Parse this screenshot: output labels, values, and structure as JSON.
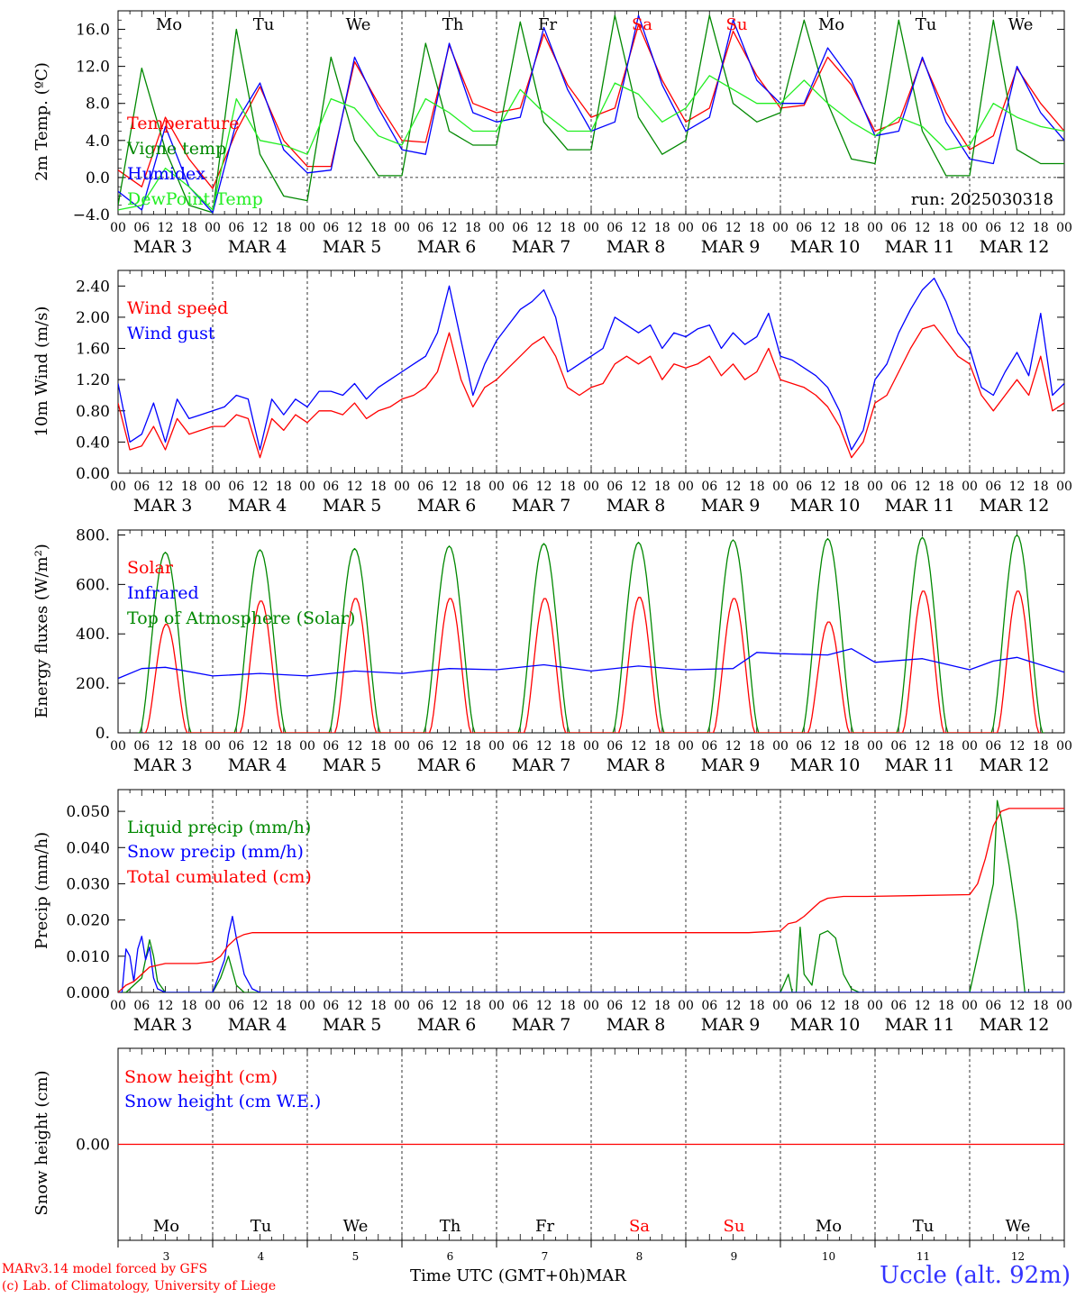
{
  "footer": {
    "credit_line1": "MARv3.14 model forced by GFS",
    "credit_line2": "(c) Lab. of Climatology, University of Liege",
    "x_title": "Time UTC (GMT+0h)",
    "x_month": "MAR",
    "station": "Uccle (alt. 92m)"
  },
  "colors": {
    "red": "#ff0000",
    "blue": "#0000ff",
    "dark_green": "#008800",
    "light_green": "#22ee22",
    "weekend": "#ff0000"
  },
  "chart_data": [
    {
      "type": "line",
      "ylabel": "2m Temp. (ºC)",
      "ylim": [
        -4,
        18
      ],
      "yticks": [
        "16.0",
        "12.0",
        "8.0",
        "4.0",
        "0.0",
        "−4.0"
      ],
      "annotation": "run: 2025030318",
      "days": [
        "Mo",
        "Tu",
        "We",
        "Th",
        "Fr",
        "Sa",
        "Su",
        "Mo",
        "Tu",
        "We"
      ],
      "series": [
        {
          "name": "Temperature",
          "color": "#ff0000",
          "x": [
            0,
            6,
            12,
            18,
            24,
            30,
            36,
            42,
            48,
            54,
            60,
            66,
            72,
            78,
            84,
            90,
            96,
            102,
            108,
            114,
            120,
            126,
            132,
            138,
            144,
            150,
            156,
            162,
            168,
            174,
            180,
            186,
            192,
            198,
            204,
            210,
            216,
            222,
            228,
            234,
            240
          ],
          "values": [
            0.8,
            -1.0,
            6.5,
            2.0,
            -1.2,
            5.0,
            9.8,
            4.0,
            1.2,
            1.2,
            12.5,
            8.0,
            4.0,
            3.8,
            14.3,
            8.0,
            7.0,
            7.5,
            15.5,
            10.0,
            6.5,
            7.5,
            16.5,
            10.5,
            6.0,
            7.5,
            15.8,
            11.0,
            7.5,
            7.8,
            13.0,
            10.0,
            5.0,
            6.0,
            12.8,
            7.0,
            3.0,
            4.5,
            11.8,
            8.0,
            5.0
          ]
        },
        {
          "name": "Vigne temp",
          "color": "#008800",
          "x": [
            0,
            6,
            12,
            18,
            24,
            30,
            36,
            42,
            48,
            54,
            60,
            66,
            72,
            78,
            84,
            90,
            96,
            102,
            108,
            114,
            120,
            126,
            132,
            138,
            144,
            150,
            156,
            162,
            168,
            174,
            180,
            186,
            192,
            198,
            204,
            210,
            216,
            222,
            228,
            234,
            240
          ],
          "values": [
            -3.0,
            11.8,
            3.0,
            -3.0,
            -3.8,
            16.0,
            2.5,
            -2.0,
            -2.5,
            13.0,
            4.0,
            0.2,
            0.2,
            14.5,
            5.0,
            3.5,
            3.5,
            16.8,
            6.0,
            3.0,
            3.0,
            17.5,
            6.5,
            2.5,
            4.0,
            17.5,
            8.0,
            6.0,
            7.0,
            17.0,
            8.0,
            2.0,
            1.5,
            17.0,
            5.0,
            0.2,
            0.2,
            17.0,
            3.0,
            1.5,
            1.5
          ]
        },
        {
          "name": "Humidex",
          "color": "#0000ff",
          "x": [
            0,
            6,
            12,
            18,
            24,
            30,
            36,
            42,
            48,
            54,
            60,
            66,
            72,
            78,
            84,
            90,
            96,
            102,
            108,
            114,
            120,
            126,
            132,
            138,
            144,
            150,
            156,
            162,
            168,
            174,
            180,
            186,
            192,
            198,
            204,
            210,
            216,
            222,
            228,
            234,
            240
          ],
          "values": [
            -1.5,
            -3.5,
            5.5,
            -1.0,
            -3.8,
            6.0,
            10.2,
            3.0,
            0.5,
            0.8,
            13.0,
            7.5,
            3.0,
            2.5,
            14.5,
            7.0,
            6.0,
            6.5,
            16.2,
            9.5,
            5.0,
            6.0,
            17.5,
            10.0,
            5.0,
            6.5,
            17.0,
            10.5,
            8.0,
            8.0,
            14.0,
            10.5,
            4.5,
            5.0,
            13.0,
            6.0,
            2.0,
            1.5,
            12.0,
            7.0,
            4.0
          ]
        },
        {
          "name": "DewPoint Temp",
          "color": "#22ee22",
          "x": [
            0,
            6,
            12,
            18,
            24,
            30,
            36,
            42,
            48,
            54,
            60,
            66,
            72,
            78,
            84,
            90,
            96,
            102,
            108,
            114,
            120,
            126,
            132,
            138,
            144,
            150,
            156,
            162,
            168,
            174,
            180,
            186,
            192,
            198,
            204,
            210,
            216,
            222,
            228,
            234,
            240
          ],
          "values": [
            -3.5,
            -3.0,
            1.0,
            -1.0,
            -3.5,
            8.5,
            4.0,
            3.5,
            2.5,
            8.5,
            7.5,
            4.5,
            3.5,
            8.5,
            7.0,
            5.0,
            5.0,
            9.5,
            7.0,
            5.0,
            5.0,
            10.2,
            9.0,
            6.0,
            7.5,
            11.0,
            9.5,
            8.0,
            8.0,
            10.5,
            8.0,
            6.0,
            4.5,
            6.5,
            5.5,
            3.0,
            3.5,
            8.0,
            6.5,
            5.5,
            5.0
          ]
        }
      ]
    },
    {
      "type": "line",
      "ylabel": "10m Wind (m/s)",
      "ylim": [
        0,
        2.6
      ],
      "yticks": [
        "2.40",
        "2.00",
        "1.60",
        "1.20",
        "0.80",
        "0.40",
        "0.00"
      ],
      "series": [
        {
          "name": "Wind speed",
          "color": "#ff0000",
          "x": [
            0,
            3,
            6,
            9,
            12,
            15,
            18,
            21,
            24,
            27,
            30,
            33,
            36,
            39,
            42,
            45,
            48,
            51,
            54,
            57,
            60,
            63,
            66,
            69,
            72,
            75,
            78,
            81,
            84,
            87,
            90,
            93,
            96,
            99,
            102,
            105,
            108,
            111,
            114,
            117,
            120,
            123,
            126,
            129,
            132,
            135,
            138,
            141,
            144,
            147,
            150,
            153,
            156,
            159,
            162,
            165,
            168,
            171,
            174,
            177,
            180,
            183,
            186,
            189,
            192,
            195,
            198,
            201,
            204,
            207,
            210,
            213,
            216,
            219,
            222,
            225,
            228,
            231,
            234,
            237,
            240
          ],
          "values": [
            0.9,
            0.3,
            0.35,
            0.6,
            0.3,
            0.7,
            0.5,
            0.55,
            0.6,
            0.6,
            0.75,
            0.7,
            0.2,
            0.7,
            0.55,
            0.75,
            0.65,
            0.8,
            0.8,
            0.75,
            0.9,
            0.7,
            0.8,
            0.85,
            0.95,
            1.0,
            1.1,
            1.3,
            1.8,
            1.2,
            0.85,
            1.1,
            1.2,
            1.35,
            1.5,
            1.65,
            1.75,
            1.5,
            1.1,
            1.0,
            1.1,
            1.15,
            1.4,
            1.5,
            1.4,
            1.5,
            1.2,
            1.4,
            1.35,
            1.4,
            1.5,
            1.25,
            1.4,
            1.2,
            1.3,
            1.6,
            1.2,
            1.15,
            1.1,
            1.0,
            0.85,
            0.6,
            0.2,
            0.4,
            0.9,
            1.0,
            1.3,
            1.6,
            1.85,
            1.9,
            1.7,
            1.5,
            1.4,
            1.0,
            0.8,
            1.0,
            1.2,
            1.0,
            1.5,
            0.8,
            0.9
          ]
        },
        {
          "name": "Wind gust",
          "color": "#0000ff",
          "x": [
            0,
            3,
            6,
            9,
            12,
            15,
            18,
            21,
            24,
            27,
            30,
            33,
            36,
            39,
            42,
            45,
            48,
            51,
            54,
            57,
            60,
            63,
            66,
            69,
            72,
            75,
            78,
            81,
            84,
            87,
            90,
            93,
            96,
            99,
            102,
            105,
            108,
            111,
            114,
            117,
            120,
            123,
            126,
            129,
            132,
            135,
            138,
            141,
            144,
            147,
            150,
            153,
            156,
            159,
            162,
            165,
            168,
            171,
            174,
            177,
            180,
            183,
            186,
            189,
            192,
            195,
            198,
            201,
            204,
            207,
            210,
            213,
            216,
            219,
            222,
            225,
            228,
            231,
            234,
            237,
            240
          ],
          "values": [
            1.15,
            0.4,
            0.5,
            0.9,
            0.4,
            0.95,
            0.7,
            0.75,
            0.8,
            0.85,
            1.0,
            0.95,
            0.3,
            0.95,
            0.75,
            0.95,
            0.85,
            1.05,
            1.05,
            1.0,
            1.15,
            0.95,
            1.1,
            1.2,
            1.3,
            1.4,
            1.5,
            1.8,
            2.4,
            1.7,
            1.0,
            1.4,
            1.7,
            1.9,
            2.1,
            2.2,
            2.35,
            2.0,
            1.3,
            1.4,
            1.5,
            1.6,
            2.0,
            1.9,
            1.8,
            1.9,
            1.6,
            1.8,
            1.75,
            1.85,
            1.9,
            1.6,
            1.8,
            1.65,
            1.75,
            2.05,
            1.5,
            1.45,
            1.35,
            1.25,
            1.1,
            0.8,
            0.3,
            0.55,
            1.2,
            1.4,
            1.8,
            2.1,
            2.35,
            2.5,
            2.2,
            1.8,
            1.6,
            1.1,
            1.0,
            1.3,
            1.55,
            1.25,
            2.05,
            1.0,
            1.15
          ]
        }
      ]
    },
    {
      "type": "line",
      "ylabel": "Energy fluxes (W/m²)",
      "ylim": [
        0,
        820
      ],
      "yticks": [
        "800.",
        "600.",
        "400.",
        "200.",
        "0."
      ],
      "series": [
        {
          "name": "Solar",
          "color": "#ff0000",
          "peaks": [
            440,
            535,
            545,
            545,
            545,
            550,
            545,
            450,
            575,
            575
          ]
        },
        {
          "name": "Infrared",
          "color": "#0000ff",
          "x": [
            0,
            6,
            12,
            24,
            36,
            48,
            60,
            72,
            84,
            96,
            108,
            120,
            132,
            144,
            156,
            162,
            168,
            180,
            186,
            192,
            204,
            216,
            222,
            228,
            240
          ],
          "values": [
            220,
            260,
            265,
            230,
            240,
            230,
            250,
            240,
            260,
            255,
            275,
            250,
            270,
            255,
            260,
            325,
            320,
            315,
            340,
            285,
            300,
            255,
            290,
            305,
            245
          ]
        },
        {
          "name": "Top of Atmosphere (Solar)",
          "color": "#008800",
          "peaks": [
            730,
            740,
            745,
            755,
            765,
            770,
            780,
            785,
            790,
            800
          ]
        }
      ]
    },
    {
      "type": "line",
      "ylabel": "Precip (mm/h)",
      "ylim": [
        0,
        0.056
      ],
      "yticks": [
        "0.050",
        "0.040",
        "0.030",
        "0.020",
        "0.010",
        "0.000"
      ],
      "series": [
        {
          "name": "Liquid precip (mm/h)",
          "color": "#008800",
          "x": [
            0,
            2,
            4,
            6,
            8,
            9,
            10,
            12,
            24,
            26,
            28,
            30,
            32,
            36,
            168,
            170,
            171,
            172,
            173,
            174,
            176,
            178,
            180,
            182,
            184,
            186,
            188,
            190,
            194,
            216,
            218,
            220,
            222,
            223,
            224,
            226,
            228,
            230,
            240
          ],
          "values": [
            0,
            0,
            0.002,
            0.004,
            0.0145,
            0.01,
            0.003,
            0,
            0,
            0.004,
            0.01,
            0.002,
            0,
            0,
            0,
            0.005,
            0,
            0,
            0.018,
            0.005,
            0.002,
            0.016,
            0.017,
            0.015,
            0.005,
            0.001,
            0,
            0,
            0,
            0,
            0.01,
            0.02,
            0.03,
            0.053,
            0.048,
            0.035,
            0.02,
            0,
            0
          ]
        },
        {
          "name": "Snow precip (mm/h)",
          "color": "#0000ff",
          "x": [
            0,
            1,
            2,
            3,
            4,
            5,
            6,
            7,
            8,
            9,
            10,
            12,
            24,
            27,
            28,
            29,
            30,
            31,
            32,
            34,
            36,
            240
          ],
          "values": [
            0,
            0,
            0.012,
            0.01,
            0.003,
            0.012,
            0.0155,
            0.009,
            0.0125,
            0.004,
            0.001,
            0,
            0,
            0.009,
            0.016,
            0.021,
            0.015,
            0.01,
            0.005,
            0.001,
            0,
            0
          ]
        },
        {
          "name": "Total cumulated (cm)",
          "color": "#ff0000",
          "x": [
            0,
            2,
            4,
            8,
            12,
            20,
            24,
            26,
            28,
            30,
            32,
            34,
            36,
            48,
            96,
            160,
            168,
            170,
            172,
            174,
            176,
            178,
            180,
            184,
            190,
            216,
            218,
            220,
            222,
            224,
            226,
            228,
            240
          ],
          "values": [
            0,
            0.002,
            0.003,
            0.007,
            0.008,
            0.008,
            0.0085,
            0.01,
            0.013,
            0.015,
            0.016,
            0.0165,
            0.0165,
            0.0165,
            0.0165,
            0.0165,
            0.017,
            0.019,
            0.0195,
            0.021,
            0.023,
            0.025,
            0.026,
            0.0265,
            0.0265,
            0.027,
            0.03,
            0.037,
            0.046,
            0.05,
            0.0508,
            0.0508,
            0.0508
          ]
        }
      ]
    },
    {
      "type": "line",
      "ylabel": "Snow height (cm)",
      "yticks": [
        "0.00"
      ],
      "series": [
        {
          "name": "Snow height (cm)",
          "color": "#ff0000",
          "x": [
            0,
            240
          ],
          "values": [
            0,
            0
          ]
        },
        {
          "name": "Snow height (cm W.E.)",
          "color": "#0000ff"
        }
      ]
    }
  ],
  "x_axis": {
    "hour_labels": [
      "00",
      "06",
      "12",
      "18"
    ],
    "date_labels": [
      "MAR  3",
      "MAR  4",
      "MAR  5",
      "MAR  6",
      "MAR  7",
      "MAR  8",
      "MAR  9",
      "MAR 10",
      "MAR 11",
      "MAR 12"
    ],
    "end_label": "00",
    "bottom_days": [
      "Mo",
      "Tu",
      "We",
      "Th",
      "Fr",
      "Sa",
      "Su",
      "Mo",
      "Tu",
      "We"
    ],
    "bottom_dates": [
      "3",
      "4",
      "5",
      "6",
      "7",
      "8",
      "9",
      "10",
      "11",
      "12"
    ],
    "weekend_index": [
      5,
      6
    ]
  }
}
